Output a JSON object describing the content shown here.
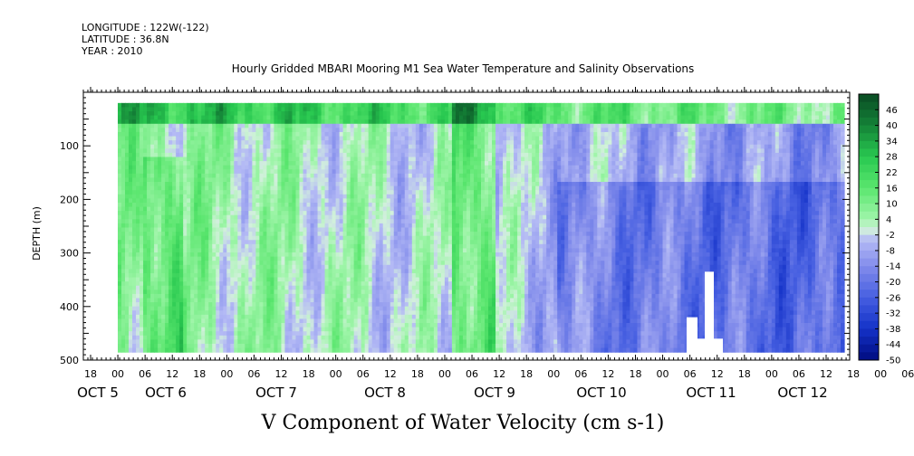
{
  "header": {
    "longitude": "LONGITUDE : 122W(-122)",
    "latitude": "LATITUDE : 36.8N",
    "year": "YEAR : 2010"
  },
  "chart_data": {
    "type": "heatmap",
    "title": "Hourly Gridded MBARI Mooring M1 Sea Water Temperature and Salinity Observations",
    "xlabel": "V Component of Water Velocity (cm s-1)",
    "ylabel": "DEPTH (m)",
    "y_ticks": [
      100,
      200,
      300,
      400,
      500
    ],
    "ylim": [
      500,
      0
    ],
    "data_depth_range": [
      20,
      485
    ],
    "hour_tick_labels": [
      "18",
      "00",
      "06",
      "12",
      "18",
      "00",
      "06",
      "12",
      "18",
      "00",
      "06",
      "12",
      "18",
      "00",
      "06",
      "12",
      "18",
      "00",
      "06",
      "12",
      "18",
      "00",
      "06",
      "12",
      "18",
      "00",
      "06",
      "12",
      "18",
      "00",
      "06",
      "12"
    ],
    "day_labels": [
      "OCT 5",
      "OCT 6",
      "OCT 7",
      "OCT 8",
      "OCT 9",
      "OCT 10",
      "OCT 11",
      "OCT 12"
    ],
    "colorbar_labels": [
      "46",
      "40",
      "34",
      "28",
      "22",
      "16",
      "10",
      "4",
      "-2",
      "-8",
      "-14",
      "-20",
      "-26",
      "-32",
      "-38",
      "-44",
      "-50"
    ],
    "colorbar_range": [
      -50,
      52
    ],
    "colorbar_step": 3,
    "colors": {
      "strong_negative": "#000c80",
      "negative": "#4a5ee8",
      "weak_negative": "#a8b0f0",
      "weak_positive": "#9cf0a8",
      "positive": "#40d860",
      "strong_positive": "#0c5a26"
    },
    "columns": [
      {
        "day_hour": 0,
        "pattern": "green_top_then_mixed"
      },
      {
        "day_hour": 24,
        "pattern": "blue_upper_green_lower"
      },
      {
        "day_hour": 48,
        "pattern": "mixed_green_bands"
      },
      {
        "day_hour": 72,
        "pattern": "blue_with_green_streaks"
      },
      {
        "day_hour": 96,
        "pattern": "strong_green_column"
      },
      {
        "day_hour": 120,
        "pattern": "blue_dominant"
      },
      {
        "day_hour": 144,
        "pattern": "blue_dominant_deep"
      },
      {
        "day_hour": 168,
        "pattern": "blue_with_green_top"
      }
    ]
  }
}
